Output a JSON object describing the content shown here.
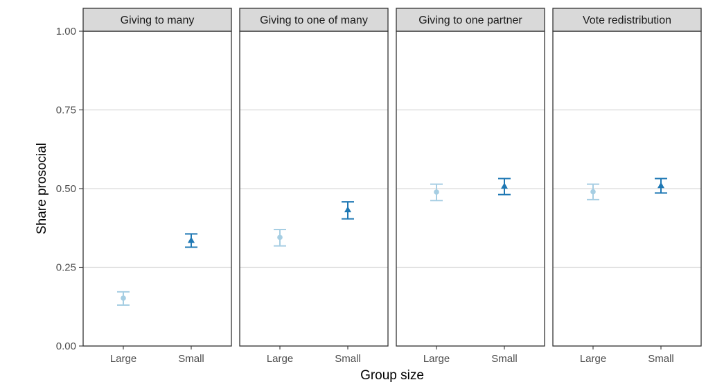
{
  "chart_data": {
    "type": "scatter",
    "facets": [
      "Giving to many",
      "Giving to one of many",
      "Giving to one partner",
      "Vote redistribution"
    ],
    "categories": [
      "Large",
      "Small"
    ],
    "xlabel": "Group size",
    "ylabel": "Share prosocial",
    "ylim": [
      0,
      1
    ],
    "yticks": [
      "0.00",
      "0.25",
      "0.50",
      "0.75",
      "1.00"
    ],
    "grid": "horizontal major",
    "colors": {
      "Large": "#a6cee3",
      "Small": "#1f78b4"
    },
    "markers": {
      "Large": "circle",
      "Small": "triangle"
    },
    "series": [
      {
        "facet": "Giving to many",
        "values": [
          {
            "x": "Large",
            "y": 0.152,
            "ymin": 0.13,
            "ymax": 0.172
          },
          {
            "x": "Small",
            "y": 0.336,
            "ymin": 0.314,
            "ymax": 0.356
          }
        ]
      },
      {
        "facet": "Giving to one of many",
        "values": [
          {
            "x": "Large",
            "y": 0.345,
            "ymin": 0.318,
            "ymax": 0.37
          },
          {
            "x": "Small",
            "y": 0.433,
            "ymin": 0.404,
            "ymax": 0.458
          }
        ]
      },
      {
        "facet": "Giving to one partner",
        "values": [
          {
            "x": "Large",
            "y": 0.489,
            "ymin": 0.462,
            "ymax": 0.514
          },
          {
            "x": "Small",
            "y": 0.508,
            "ymin": 0.481,
            "ymax": 0.532
          }
        ]
      },
      {
        "facet": "Vote redistribution",
        "values": [
          {
            "x": "Large",
            "y": 0.49,
            "ymin": 0.465,
            "ymax": 0.514
          },
          {
            "x": "Small",
            "y": 0.51,
            "ymin": 0.486,
            "ymax": 0.532
          }
        ]
      }
    ]
  }
}
